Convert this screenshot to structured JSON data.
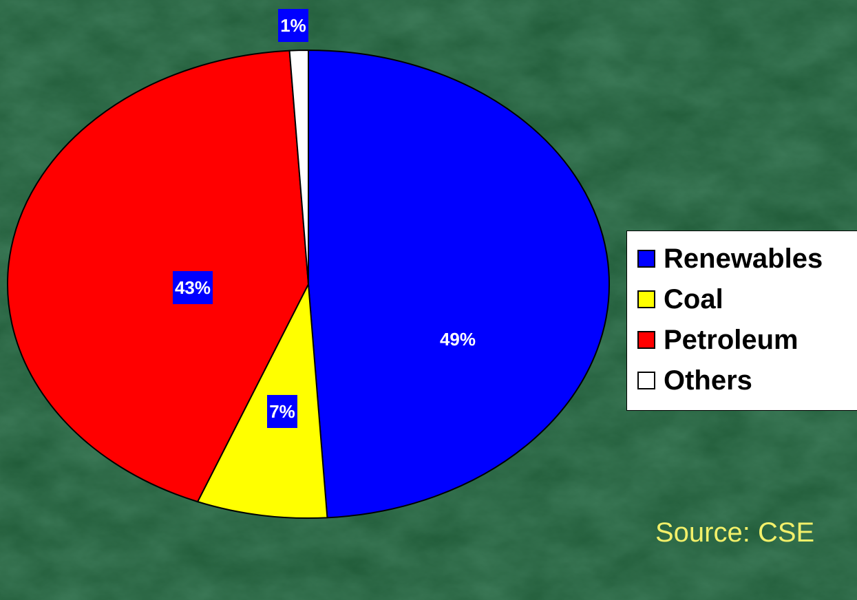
{
  "colors": {
    "background": "#1f5a37",
    "renewables": "#0000ff",
    "coal": "#ffff00",
    "petroleum": "#ff0000",
    "others": "#ffffff",
    "data_label_box": "#0000ff",
    "source_text": "#f2f06a"
  },
  "chart_data": {
    "type": "pie",
    "title": "",
    "start_angle": "12 o'clock",
    "direction": "clockwise",
    "legend_position": "right",
    "categories": [
      "Renewables",
      "Coal",
      "Petroleum",
      "Others"
    ],
    "values": [
      49,
      7,
      43,
      1
    ],
    "unit": "%",
    "data_labels": [
      "49%",
      "7%",
      "43%",
      "1%"
    ],
    "colors": [
      "#0000ff",
      "#ffff00",
      "#ff0000",
      "#ffffff"
    ]
  },
  "legend": {
    "items": [
      {
        "label": "Renewables",
        "color": "#0000ff"
      },
      {
        "label": "Coal",
        "color": "#ffff00"
      },
      {
        "label": "Petroleum",
        "color": "#ff0000"
      },
      {
        "label": "Others",
        "color": "#ffffff"
      }
    ]
  },
  "source": "Source: CSE"
}
